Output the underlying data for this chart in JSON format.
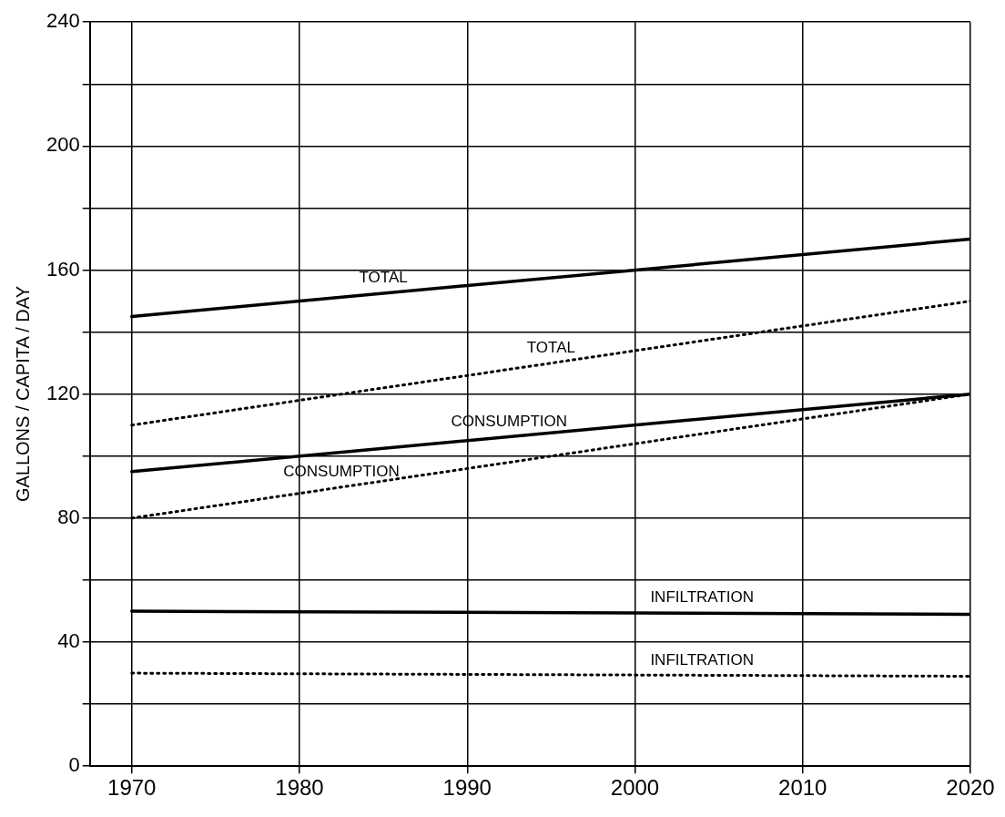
{
  "chart_data": {
    "type": "line",
    "ylabel": "GALLONS / CAPITA / DAY",
    "x": [
      1970,
      2020
    ],
    "xlim": [
      1967.5,
      2020
    ],
    "xticks": [
      1970,
      1980,
      1990,
      2000,
      2010,
      2020
    ],
    "ylim": [
      0,
      240
    ],
    "yticks": [
      0,
      {
        "value": 20,
        "label": null
      },
      40,
      {
        "value": 60,
        "label": null
      },
      80,
      {
        "value": 100,
        "label": null
      },
      120,
      {
        "value": 140,
        "label": null
      },
      160,
      {
        "value": 180,
        "label": null
      },
      200,
      {
        "value": 220,
        "label": null
      },
      240
    ],
    "grid": true,
    "marker": "none",
    "series": [
      {
        "name": "TOTAL",
        "color": "#000000",
        "values": [
          145,
          170
        ],
        "line_style": "solid"
      },
      {
        "name": "TOTAL",
        "color": "#000000",
        "values": [
          110,
          150
        ],
        "line_style": "dotted"
      },
      {
        "name": "CONSUMPTION",
        "color": "#000000",
        "values": [
          95,
          120
        ],
        "line_style": "solid"
      },
      {
        "name": "CONSUMPTION",
        "color": "#000000",
        "values": [
          80,
          120
        ],
        "line_style": "dotted"
      },
      {
        "name": "INFILTRATION",
        "color": "#000000",
        "values": [
          50,
          49
        ],
        "line_style": "solid"
      },
      {
        "name": "INFILTRATION",
        "color": "#000000",
        "values": [
          30,
          29
        ],
        "line_style": "dotted"
      }
    ]
  }
}
